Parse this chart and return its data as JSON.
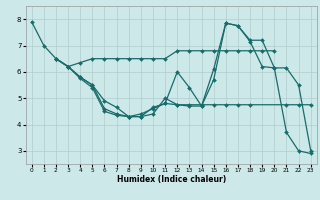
{
  "xlabel": "Humidex (Indice chaleur)",
  "ylabel": "",
  "bg_color": "#cde8e8",
  "grid_color": "#b0cccc",
  "line_color": "#1a6b6b",
  "xlim": [
    -0.5,
    23.5
  ],
  "ylim": [
    2.5,
    8.5
  ],
  "xticks": [
    0,
    1,
    2,
    3,
    4,
    5,
    6,
    7,
    8,
    9,
    10,
    11,
    12,
    13,
    14,
    15,
    16,
    17,
    18,
    19,
    20,
    21,
    22,
    23
  ],
  "yticks": [
    3,
    4,
    5,
    6,
    7,
    8
  ],
  "lines": [
    {
      "x": [
        0,
        1,
        2,
        3,
        4,
        5,
        6,
        7,
        8,
        9,
        10,
        11,
        12,
        13,
        14,
        15,
        16,
        17,
        18,
        21,
        22,
        23
      ],
      "y": [
        7.9,
        7.0,
        6.5,
        6.2,
        5.8,
        5.5,
        4.9,
        4.65,
        4.3,
        4.3,
        4.65,
        4.8,
        4.75,
        4.75,
        4.75,
        4.75,
        4.75,
        4.75,
        4.75,
        4.75,
        4.75,
        4.75
      ]
    },
    {
      "x": [
        2,
        3,
        4,
        5,
        6,
        7,
        8,
        9,
        10,
        11,
        12,
        13,
        14,
        15,
        16,
        17,
        18,
        19,
        20
      ],
      "y": [
        6.5,
        6.2,
        6.35,
        6.5,
        6.5,
        6.5,
        6.5,
        6.5,
        6.5,
        6.5,
        6.8,
        6.8,
        6.8,
        6.8,
        6.8,
        6.8,
        6.8,
        6.8,
        6.8
      ]
    },
    {
      "x": [
        2,
        3,
        4,
        5,
        6,
        7,
        8,
        9,
        10,
        11,
        12,
        13,
        14,
        15,
        16,
        17,
        18,
        19,
        20,
        21,
        22,
        23
      ],
      "y": [
        6.5,
        6.2,
        5.8,
        5.5,
        4.6,
        4.4,
        4.3,
        4.4,
        4.6,
        4.8,
        6.0,
        5.4,
        4.7,
        6.1,
        7.85,
        7.75,
        7.15,
        6.2,
        6.15,
        6.15,
        5.5,
        3.0
      ]
    },
    {
      "x": [
        2,
        3,
        4,
        5,
        6,
        7,
        8,
        9,
        10,
        11,
        12,
        13,
        14,
        15,
        16,
        17,
        18,
        19,
        20,
        21,
        22,
        23
      ],
      "y": [
        6.5,
        6.2,
        5.75,
        5.4,
        4.5,
        4.35,
        4.3,
        4.3,
        4.4,
        5.0,
        4.75,
        4.7,
        4.7,
        5.7,
        7.85,
        7.75,
        7.2,
        7.2,
        6.15,
        3.7,
        3.0,
        2.9
      ]
    }
  ]
}
